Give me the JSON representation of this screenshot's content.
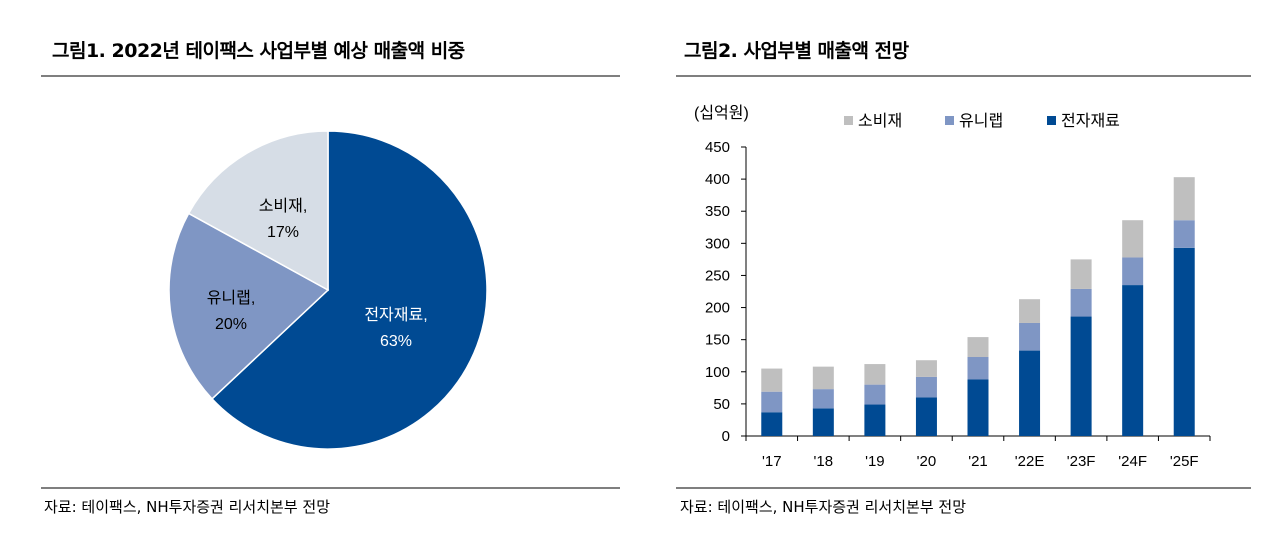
{
  "figure1": {
    "title": "그림1. 2022년 테이팩스 사업부별 예상 매출액 비중",
    "source": "자료: 테이팩스, NH투자증권 리서치본부 전망"
  },
  "figure2": {
    "title": "그림2. 사업부별 매출액 전망",
    "source": "자료: 테이팩스, NH투자증권 리서치본부 전망"
  },
  "colors": {
    "electronic_materials": "#004a93",
    "unilab": "#7f96c4",
    "consumer_goods_pie": "#d6dde6",
    "consumer_goods_bar": "#bfbfbf",
    "rule": "#7f7f7f"
  },
  "chart_data": [
    {
      "type": "pie",
      "slices": [
        {
          "name": "전자재료",
          "value": 63,
          "label": "63%"
        },
        {
          "name": "유니랩",
          "value": 20,
          "label": "20%"
        },
        {
          "name": "소비재",
          "value": 17,
          "label": "17%"
        }
      ],
      "start": "top, clockwise"
    },
    {
      "type": "bar",
      "stacked": true,
      "unit_label": "(십억원)",
      "categories": [
        "'17",
        "'18",
        "'19",
        "'20",
        "'21",
        "'22E",
        "'23F",
        "'24F",
        "'25F"
      ],
      "series": [
        {
          "name": "전자재료",
          "values": [
            37,
            43,
            49,
            60,
            88,
            133,
            186,
            235,
            293
          ]
        },
        {
          "name": "유니랩",
          "values": [
            32,
            30,
            31,
            32,
            35,
            43,
            43,
            43,
            43
          ]
        },
        {
          "name": "소비재",
          "values": [
            36,
            35,
            32,
            26,
            31,
            37,
            46,
            58,
            67
          ]
        }
      ],
      "legend_order": [
        "소비재",
        "유니랩",
        "전자재료"
      ],
      "legend_position": "top",
      "ylim": [
        0,
        450
      ],
      "yticks": [
        0,
        50,
        100,
        150,
        200,
        250,
        300,
        350,
        400,
        450
      ],
      "grid": false
    }
  ]
}
